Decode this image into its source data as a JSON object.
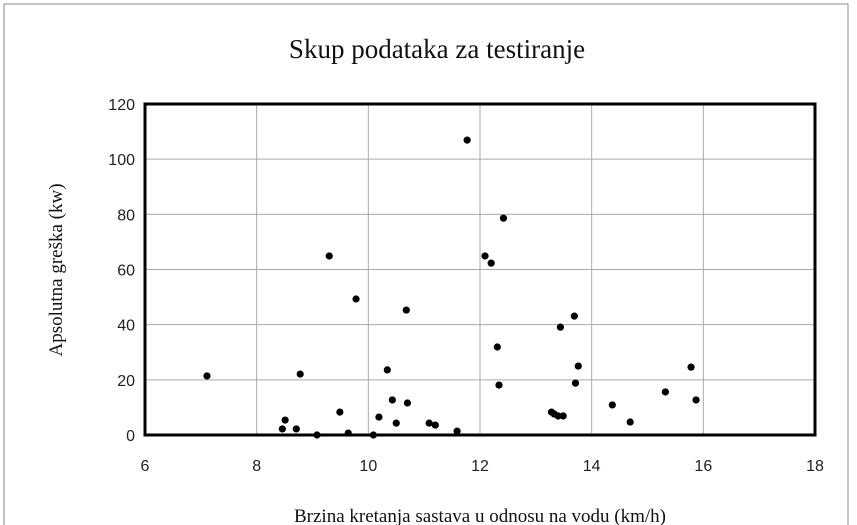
{
  "chart_data": {
    "type": "scatter",
    "title": "Skup podataka za testiranje",
    "x_label": "Brzina kretanja sastava u odnosu na vodu (km/h)",
    "y_label": "Apsolutna greška (kw)",
    "color": "#000000",
    "grid": true,
    "xlim": [
      6,
      18
    ],
    "xticks": [
      6,
      8,
      10,
      12,
      14,
      16,
      18
    ],
    "ylim": [
      0,
      120
    ],
    "yticks": [
      0,
      20,
      40,
      60,
      80,
      100,
      120
    ],
    "x": [
      7.11,
      8.46,
      8.51,
      8.71,
      8.78,
      9.08,
      9.3,
      9.49,
      9.64,
      9.78,
      10.09,
      10.19,
      10.34,
      10.43,
      10.5,
      10.68,
      10.7,
      11.09,
      11.2,
      11.59,
      11.77,
      12.09,
      12.2,
      12.31,
      12.34,
      12.42,
      13.28,
      13.33,
      13.4,
      13.49,
      13.44,
      13.69,
      13.71,
      13.76,
      14.37,
      14.69,
      15.32,
      15.78,
      15.87
    ],
    "values": [
      21.4,
      2.2,
      5.4,
      2.2,
      22.1,
      0,
      64.9,
      8.3,
      0.7,
      49.3,
      0,
      6.5,
      23.6,
      12.7,
      4.3,
      45.3,
      11.6,
      4.3,
      3.6,
      1.4,
      106.9,
      64.9,
      62.3,
      31.9,
      18.1,
      78.6,
      8.3,
      7.6,
      6.9,
      6.9,
      39.1,
      43.1,
      18.8,
      25.0,
      10.9,
      4.7,
      15.6,
      24.6,
      12.7
    ]
  }
}
